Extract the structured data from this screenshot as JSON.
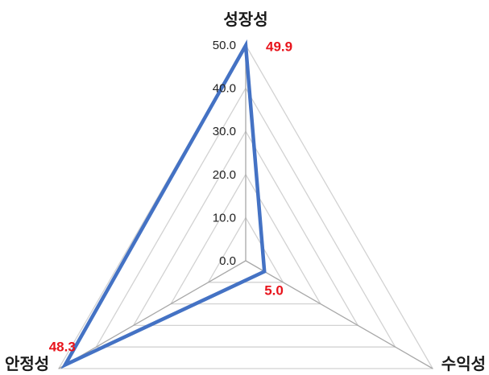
{
  "colors": {
    "series": "#4472c4",
    "data_label": "#e8141c",
    "grid": "#d2d2d2",
    "spoke": "#a8a8a8"
  },
  "chart_data": {
    "type": "radar",
    "title": "",
    "axes": [
      "성장성",
      "수익성",
      "안정성"
    ],
    "range": [
      0,
      50
    ],
    "ticks": [
      "0.0",
      "10.0",
      "20.0",
      "30.0",
      "40.0",
      "50.0"
    ],
    "tick_values": [
      0,
      10,
      20,
      30,
      40,
      50
    ],
    "grid": true,
    "legend": "none",
    "series": [
      {
        "values": [
          49.9,
          5.0,
          48.3
        ],
        "labels": [
          "49.9",
          "5.0",
          "48.3"
        ]
      }
    ]
  }
}
